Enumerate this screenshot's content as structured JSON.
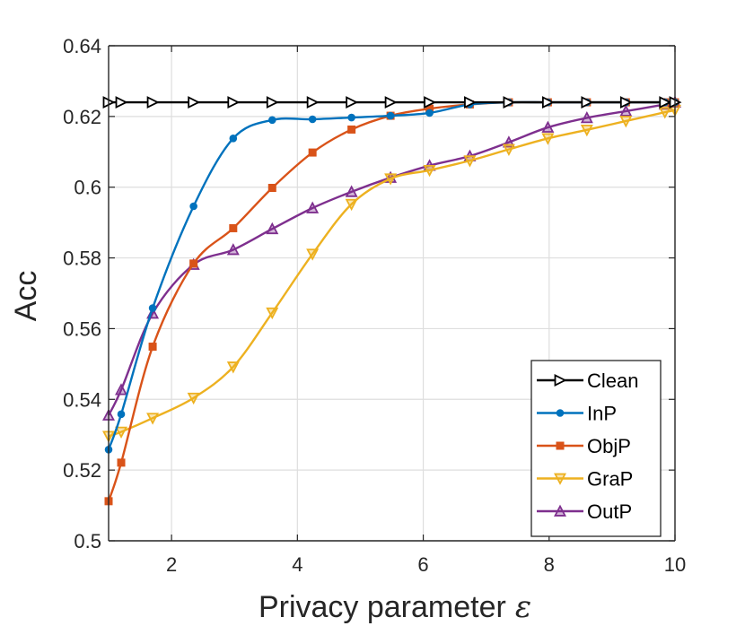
{
  "chart_data": {
    "type": "line",
    "title": "",
    "xlabel": "Privacy parameter",
    "xlabel_symbol": "ε",
    "ylabel": "Acc",
    "xlim": [
      1,
      10
    ],
    "ylim": [
      0.5,
      0.64
    ],
    "xticks": [
      2,
      4,
      6,
      8,
      10
    ],
    "yticks": [
      0.5,
      0.52,
      0.54,
      0.56,
      0.58,
      0.6,
      0.62,
      0.64
    ],
    "ytick_labels": [
      "0.5",
      "0.52",
      "0.54",
      "0.56",
      "0.58",
      "0.6",
      "0.62",
      "0.64"
    ],
    "grid": true,
    "legend_position": "bottom-right",
    "series": [
      {
        "name": "Clean",
        "color": "#000000",
        "marker": "triangle-right",
        "x": [
          1.0,
          1.2,
          1.7,
          2.35,
          2.98,
          3.6,
          4.24,
          4.86,
          5.48,
          6.1,
          6.74,
          7.36,
          7.98,
          8.6,
          9.22,
          9.84,
          10.0
        ],
        "y": [
          0.624,
          0.624,
          0.624,
          0.624,
          0.624,
          0.624,
          0.624,
          0.624,
          0.624,
          0.624,
          0.624,
          0.624,
          0.624,
          0.624,
          0.624,
          0.624,
          0.624
        ]
      },
      {
        "name": "InP",
        "color": "#0072BD",
        "marker": "circle",
        "x": [
          1.0,
          1.2,
          1.7,
          2.35,
          2.98,
          3.6,
          4.24,
          4.86,
          5.48,
          6.1,
          6.74,
          7.36,
          7.98,
          8.6,
          9.22,
          9.84,
          10.0
        ],
        "y": [
          0.5258,
          0.5358,
          0.5658,
          0.5946,
          0.6138,
          0.619,
          0.6192,
          0.6197,
          0.6202,
          0.621,
          0.6234,
          0.624,
          0.624,
          0.624,
          0.624,
          0.624,
          0.624
        ]
      },
      {
        "name": "ObjP",
        "color": "#D95319",
        "marker": "square",
        "x": [
          1.0,
          1.2,
          1.7,
          2.35,
          2.98,
          3.6,
          4.24,
          4.86,
          5.48,
          6.1,
          6.74,
          7.36,
          7.98,
          8.6,
          9.22,
          9.84,
          10.0
        ],
        "y": [
          0.5112,
          0.5221,
          0.5549,
          0.5784,
          0.5884,
          0.5998,
          0.6098,
          0.6163,
          0.6202,
          0.6222,
          0.6234,
          0.624,
          0.624,
          0.624,
          0.624,
          0.624,
          0.624
        ]
      },
      {
        "name": "GraP",
        "color": "#EDB120",
        "marker": "triangle-down",
        "x": [
          1.0,
          1.2,
          1.7,
          2.35,
          2.98,
          3.6,
          4.24,
          4.86,
          5.48,
          6.1,
          6.74,
          7.36,
          7.98,
          8.6,
          9.22,
          9.84,
          10.0
        ],
        "y": [
          0.5296,
          0.5308,
          0.5347,
          0.5404,
          0.5492,
          0.5645,
          0.5811,
          0.5952,
          0.6024,
          0.6048,
          0.6075,
          0.6107,
          0.6138,
          0.6162,
          0.6187,
          0.6212,
          0.6218
        ]
      },
      {
        "name": "OutP",
        "color": "#7E2F8E",
        "marker": "triangle-up",
        "x": [
          1.0,
          1.2,
          1.7,
          2.35,
          2.98,
          3.6,
          4.24,
          4.86,
          5.48,
          6.1,
          6.74,
          7.36,
          7.98,
          8.6,
          9.22,
          9.84,
          10.0
        ],
        "y": [
          0.5355,
          0.5427,
          0.5643,
          0.5781,
          0.5823,
          0.5882,
          0.5941,
          0.5987,
          0.6027,
          0.6061,
          0.6088,
          0.6127,
          0.6169,
          0.6196,
          0.6215,
          0.6234,
          0.624
        ]
      }
    ]
  }
}
